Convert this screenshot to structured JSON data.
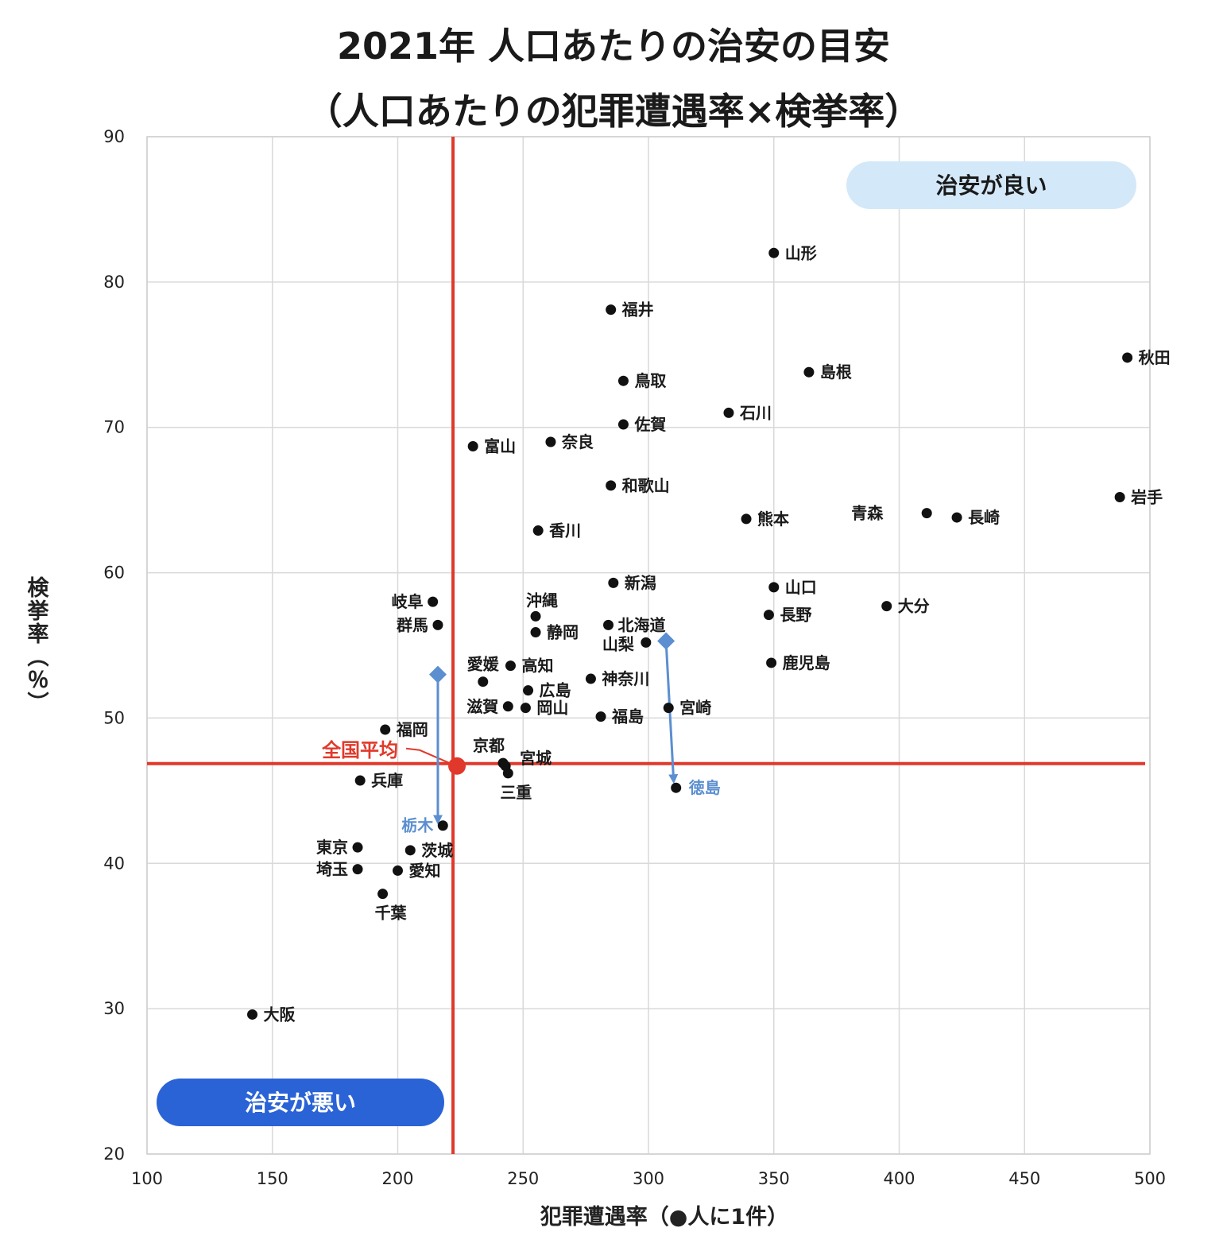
{
  "chart_data": {
    "type": "scatter",
    "title": "2021年 人口あたりの治安の目安",
    "subtitle": "（人口あたりの犯罪遭遇率×検挙率）",
    "xlabel": "犯罪遭遇率（●人に1件）",
    "ylabel": "検挙率（％）",
    "xlim": [
      100,
      500
    ],
    "ylim": [
      20,
      90
    ],
    "xticks": [
      100,
      150,
      200,
      250,
      300,
      350,
      400,
      450,
      500
    ],
    "yticks": [
      20,
      30,
      40,
      50,
      60,
      70,
      80,
      90
    ],
    "grid": true,
    "average": {
      "label": "全国平均",
      "x": 223,
      "y": 46.7
    },
    "quadrant_badges": [
      {
        "text": "治安が良い",
        "position": "top-right"
      },
      {
        "text": "治安が悪い",
        "position": "bottom-left"
      }
    ],
    "highlight_arrows": [
      {
        "label": "栃木",
        "from": [
          216,
          53
        ],
        "to": [
          216,
          43
        ]
      },
      {
        "label": "徳島",
        "from": [
          307,
          55.3
        ],
        "to": [
          310,
          45.8
        ]
      }
    ],
    "points": [
      {
        "name": "山形",
        "x": 350,
        "y": 82.0
      },
      {
        "name": "福井",
        "x": 285,
        "y": 78.1
      },
      {
        "name": "秋田",
        "x": 491,
        "y": 74.8
      },
      {
        "name": "島根",
        "x": 364,
        "y": 73.8
      },
      {
        "name": "鳥取",
        "x": 290,
        "y": 73.2
      },
      {
        "name": "石川",
        "x": 332,
        "y": 71.0
      },
      {
        "name": "佐賀",
        "x": 290,
        "y": 70.2
      },
      {
        "name": "奈良",
        "x": 261,
        "y": 69.0
      },
      {
        "name": "富山",
        "x": 230,
        "y": 68.7
      },
      {
        "name": "和歌山",
        "x": 285,
        "y": 66.0
      },
      {
        "name": "岩手",
        "x": 488,
        "y": 65.2
      },
      {
        "name": "青森",
        "x": 411,
        "y": 64.1
      },
      {
        "name": "長崎",
        "x": 423,
        "y": 63.8
      },
      {
        "name": "熊本",
        "x": 339,
        "y": 63.7
      },
      {
        "name": "香川",
        "x": 256,
        "y": 62.9
      },
      {
        "name": "新潟",
        "x": 286,
        "y": 59.3
      },
      {
        "name": "山口",
        "x": 350,
        "y": 59.0
      },
      {
        "name": "岐阜",
        "x": 214,
        "y": 58.0
      },
      {
        "name": "大分",
        "x": 395,
        "y": 57.7
      },
      {
        "name": "沖縄",
        "x": 255,
        "y": 57.0
      },
      {
        "name": "長野",
        "x": 348,
        "y": 57.1
      },
      {
        "name": "群馬",
        "x": 216,
        "y": 56.4
      },
      {
        "name": "北海道",
        "x": 284,
        "y": 56.4
      },
      {
        "name": "静岡",
        "x": 255,
        "y": 55.9
      },
      {
        "name": "山梨",
        "x": 299,
        "y": 55.2
      },
      {
        "name": "鹿児島",
        "x": 349,
        "y": 53.8
      },
      {
        "name": "高知",
        "x": 245,
        "y": 53.6
      },
      {
        "name": "神奈川",
        "x": 277,
        "y": 52.7
      },
      {
        "name": "愛媛",
        "x": 234,
        "y": 52.5
      },
      {
        "name": "広島",
        "x": 252,
        "y": 51.9
      },
      {
        "name": "滋賀",
        "x": 244,
        "y": 50.8
      },
      {
        "name": "岡山",
        "x": 251,
        "y": 50.7
      },
      {
        "name": "宮崎",
        "x": 308,
        "y": 50.7
      },
      {
        "name": "福島",
        "x": 281,
        "y": 50.1
      },
      {
        "name": "福岡",
        "x": 195,
        "y": 49.2
      },
      {
        "name": "京都",
        "x": 242,
        "y": 46.9
      },
      {
        "name": "宮城",
        "x": 243,
        "y": 46.7
      },
      {
        "name": "三重",
        "x": 244,
        "y": 46.2
      },
      {
        "name": "兵庫",
        "x": 185,
        "y": 45.7
      },
      {
        "name": "徳島",
        "x": 311,
        "y": 45.2
      },
      {
        "name": "栃木",
        "x": 218,
        "y": 42.6
      },
      {
        "name": "東京",
        "x": 184,
        "y": 41.1
      },
      {
        "name": "茨城",
        "x": 205,
        "y": 40.9
      },
      {
        "name": "埼玉",
        "x": 184,
        "y": 39.6
      },
      {
        "name": "愛知",
        "x": 200,
        "y": 39.5
      },
      {
        "name": "千葉",
        "x": 194,
        "y": 37.9
      },
      {
        "name": "大阪",
        "x": 142,
        "y": 29.6
      }
    ]
  },
  "colors": {
    "average_line": "#e0392b",
    "highlight": "#5b8fd0",
    "good_badge_bg": "#d3e8f8",
    "bad_badge_bg": "#2a63d6",
    "grid": "#d9d9d9"
  }
}
